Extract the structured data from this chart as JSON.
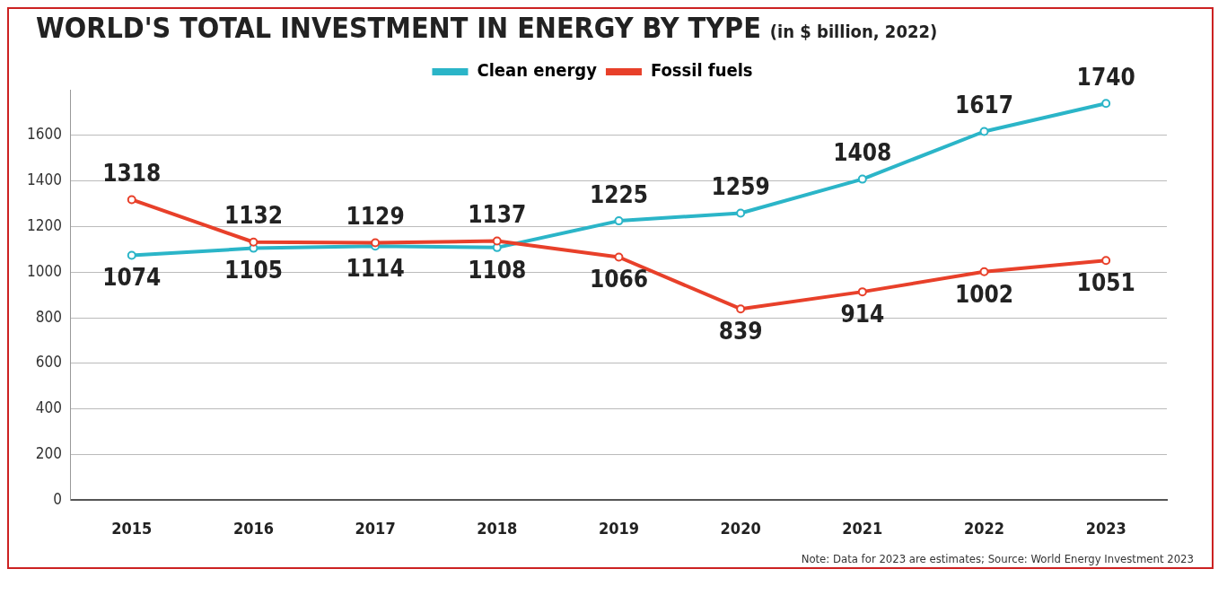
{
  "chart_data": {
    "type": "line",
    "title": "WORLD'S TOTAL INVESTMENT IN ENERGY BY TYPE",
    "subtitle": "(in $ billion, 2022)",
    "categories": [
      "2015",
      "2016",
      "2017",
      "2018",
      "2019",
      "2020",
      "2021",
      "2022",
      "2023"
    ],
    "series": [
      {
        "name": "Clean energy",
        "color": "#2bb5c8",
        "values": [
          1074,
          1105,
          1114,
          1108,
          1225,
          1259,
          1408,
          1617,
          1740
        ]
      },
      {
        "name": "Fossil fuels",
        "color": "#e8402a",
        "values": [
          1318,
          1132,
          1129,
          1137,
          1066,
          839,
          914,
          1002,
          1051
        ]
      }
    ],
    "ylim": [
      0,
      1800
    ],
    "yticks": [
      0,
      200,
      400,
      600,
      800,
      1000,
      1200,
      1400,
      1600
    ],
    "grid": "y",
    "legend": "top",
    "marker": "circle",
    "data_labels": true,
    "annotations": [
      "Note: Data for 2023 are estimates; Source: World Energy Investment 2023"
    ]
  }
}
